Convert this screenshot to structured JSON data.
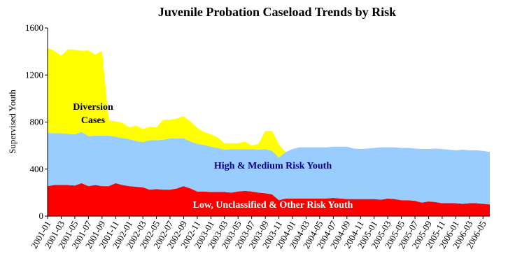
{
  "chart_data": {
    "type": "area",
    "stacked": true,
    "title": "Juvenile Probation Caseload Trends by Risk",
    "ylabel": "Supervised Youth",
    "xlabel": "",
    "ylim": [
      0,
      1600
    ],
    "yticks": [
      0,
      400,
      800,
      1200,
      1600
    ],
    "grid": false,
    "x": [
      "2001-01",
      "2001-02",
      "2001-03",
      "2001-04",
      "2001-05",
      "2001-06",
      "2001-07",
      "2001-08",
      "2001-09",
      "2001-10",
      "2001-11",
      "2001-12",
      "2002-01",
      "2002-02",
      "2002-03",
      "2002-04",
      "2002-05",
      "2002-06",
      "2002-07",
      "2002-08",
      "2002-09",
      "2002-10",
      "2002-11",
      "2002-12",
      "2003-01",
      "2003-02",
      "2003-03",
      "2003-04",
      "2003-05",
      "2003-06",
      "2003-07",
      "2003-08",
      "2003-09",
      "2003-10",
      "2003-11",
      "2003-12",
      "2004-01",
      "2004-02",
      "2004-03",
      "2004-04",
      "2004-05",
      "2004-06",
      "2004-07",
      "2004-08",
      "2004-09",
      "2004-10",
      "2004-11",
      "2004-12",
      "2005-01",
      "2005-02",
      "2005-03",
      "2005-04",
      "2005-05",
      "2005-06",
      "2005-07",
      "2005-08",
      "2005-09",
      "2005-10",
      "2005-11",
      "2005-12",
      "2006-01",
      "2006-02",
      "2006-03",
      "2006-04",
      "2006-05",
      "2006-06"
    ],
    "x_tick_labels": [
      "2001-01",
      "2001-03",
      "2001-05",
      "2001-07",
      "2001-09",
      "2001-11",
      "2002-01",
      "2002-03",
      "2002-05",
      "2002-07",
      "2002-09",
      "2002-11",
      "2003-01",
      "2003-03",
      "2003-05",
      "2003-07",
      "2003-09",
      "2003-11",
      "2004-01",
      "2004-03",
      "2004-05",
      "2004-07",
      "2004-09",
      "2004-11",
      "2005-01",
      "2005-03",
      "2005-05",
      "2005-07",
      "2005-09",
      "2005-11",
      "2006-01",
      "2006-03",
      "2006-05"
    ],
    "series": [
      {
        "name": "Low, Unclassified & Other Risk Youth",
        "color": "#ff0000",
        "values": [
          255,
          265,
          265,
          265,
          260,
          280,
          255,
          265,
          255,
          255,
          280,
          265,
          255,
          250,
          245,
          225,
          230,
          225,
          225,
          235,
          255,
          235,
          210,
          210,
          205,
          205,
          205,
          200,
          210,
          215,
          210,
          200,
          195,
          185,
          135,
          150,
          150,
          150,
          150,
          150,
          150,
          150,
          155,
          150,
          145,
          145,
          145,
          145,
          145,
          140,
          150,
          145,
          135,
          135,
          130,
          115,
          125,
          120,
          110,
          110,
          110,
          105,
          110,
          110,
          105,
          100
        ]
      },
      {
        "name": "High & Medium Risk Youth",
        "color": "#99ccff",
        "values": [
          455,
          440,
          440,
          435,
          435,
          435,
          425,
          420,
          430,
          430,
          395,
          400,
          400,
          390,
          385,
          420,
          415,
          425,
          435,
          425,
          405,
          400,
          405,
          395,
          385,
          375,
          360,
          370,
          360,
          355,
          360,
          365,
          375,
          370,
          365,
          395,
          420,
          435,
          435,
          435,
          435,
          435,
          435,
          440,
          445,
          430,
          425,
          430,
          435,
          445,
          435,
          440,
          445,
          445,
          445,
          455,
          445,
          455,
          460,
          455,
          450,
          460,
          450,
          450,
          450,
          445
        ]
      },
      {
        "name": "Diversion Cases",
        "color": "#ffff00",
        "values": [
          720,
          700,
          660,
          720,
          720,
          690,
          730,
          690,
          720,
          130,
          130,
          130,
          100,
          130,
          110,
          115,
          110,
          170,
          160,
          170,
          190,
          170,
          135,
          110,
          105,
          90,
          55,
          50,
          50,
          65,
          30,
          50,
          155,
          170,
          110,
          0,
          0,
          0,
          0,
          0,
          0,
          0,
          0,
          0,
          0,
          0,
          0,
          0,
          0,
          0,
          0,
          0,
          0,
          0,
          0,
          0,
          0,
          0,
          0,
          0,
          0,
          0,
          0,
          0,
          0,
          0
        ]
      }
    ],
    "label_lines": [
      "Diversion",
      "Cases"
    ],
    "series_label_colors": [
      "#ffffff",
      "#000080",
      "#000000"
    ]
  }
}
